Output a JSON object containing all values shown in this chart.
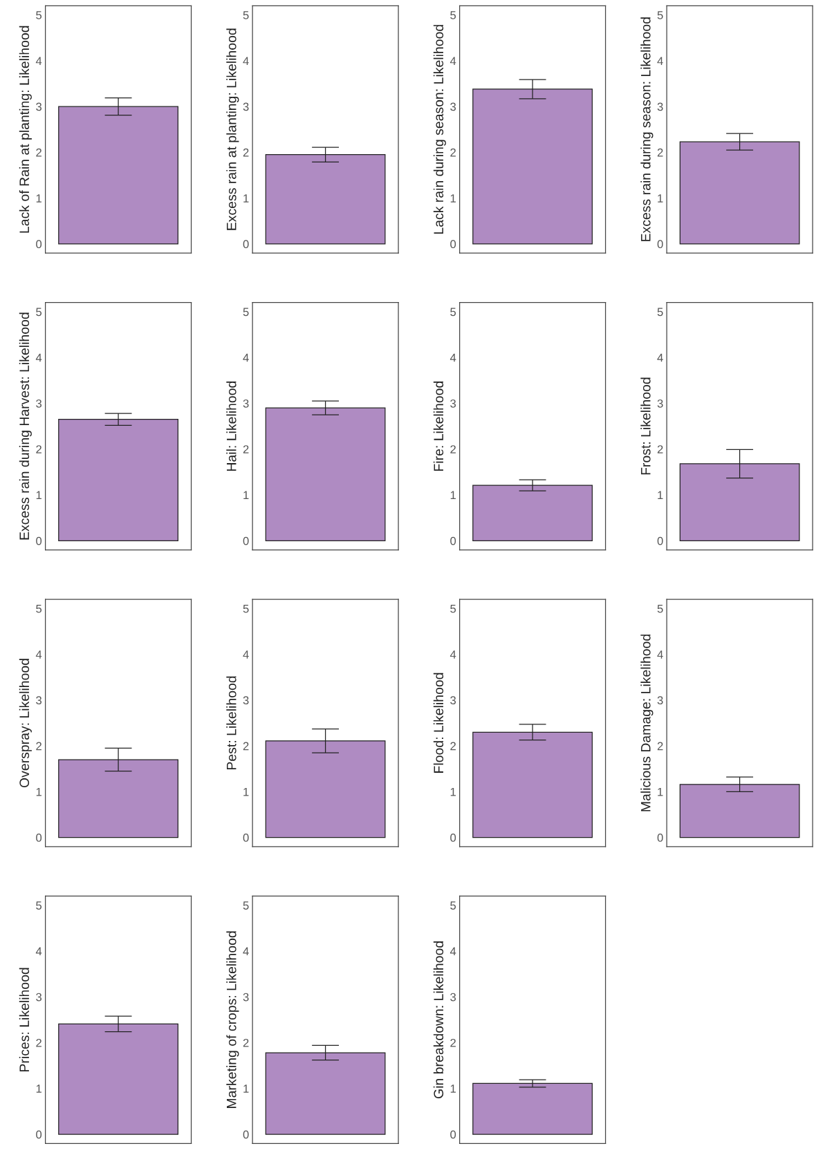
{
  "chart_data": [
    {
      "type": "bar",
      "ylabel": "Lack of Rain at planting: Likelihood",
      "categories": [
        null
      ],
      "values": [
        3.0
      ],
      "errors": [
        0.19
      ],
      "color": "#af8bc2",
      "ylim": [
        -0.2,
        5.2
      ],
      "yticks": [
        0,
        1,
        2,
        3,
        4,
        5
      ],
      "tick_labels": "y",
      "grid": false
    },
    {
      "type": "bar",
      "ylabel": "Excess rain at planting: Likelihood",
      "categories": [
        null
      ],
      "values": [
        1.95
      ],
      "errors": [
        0.16
      ],
      "color": "#af8bc2",
      "ylim": [
        -0.2,
        5.2
      ],
      "yticks": [
        0,
        1,
        2,
        3,
        4,
        5
      ],
      "tick_labels": "y",
      "grid": false
    },
    {
      "type": "bar",
      "ylabel": "Lack rain during season: Likelihood",
      "categories": [
        null
      ],
      "values": [
        3.38
      ],
      "errors": [
        0.21
      ],
      "color": "#af8bc2",
      "ylim": [
        -0.2,
        5.2
      ],
      "yticks": [
        0,
        1,
        2,
        3,
        4,
        5
      ],
      "tick_labels": "y",
      "grid": false
    },
    {
      "type": "bar",
      "ylabel": "Excess rain during season: Likelihood",
      "categories": [
        null
      ],
      "values": [
        2.23
      ],
      "errors": [
        0.18
      ],
      "color": "#af8bc2",
      "ylim": [
        -0.2,
        5.2
      ],
      "yticks": [
        0,
        1,
        2,
        3,
        4,
        5
      ],
      "tick_labels": "y",
      "grid": false
    },
    {
      "type": "bar",
      "ylabel": "Excess rain during Harvest: Likelihood",
      "categories": [
        null
      ],
      "values": [
        2.65
      ],
      "errors": [
        0.13
      ],
      "color": "#af8bc2",
      "ylim": [
        -0.2,
        5.2
      ],
      "yticks": [
        0,
        1,
        2,
        3,
        4,
        5
      ],
      "tick_labels": "y",
      "grid": false
    },
    {
      "type": "bar",
      "ylabel": "Hail: Likelihood",
      "categories": [
        null
      ],
      "values": [
        2.9
      ],
      "errors": [
        0.15
      ],
      "color": "#af8bc2",
      "ylim": [
        -0.2,
        5.2
      ],
      "yticks": [
        0,
        1,
        2,
        3,
        4,
        5
      ],
      "tick_labels": "y",
      "grid": false
    },
    {
      "type": "bar",
      "ylabel": "Fire: Likelihood",
      "categories": [
        null
      ],
      "values": [
        1.21
      ],
      "errors": [
        0.12
      ],
      "color": "#af8bc2",
      "ylim": [
        -0.2,
        5.2
      ],
      "yticks": [
        0,
        1,
        2,
        3,
        4,
        5
      ],
      "tick_labels": "y",
      "grid": false
    },
    {
      "type": "bar",
      "ylabel": "Frost: Likelihood",
      "categories": [
        null
      ],
      "values": [
        1.68
      ],
      "errors": [
        0.31
      ],
      "color": "#af8bc2",
      "ylim": [
        -0.2,
        5.2
      ],
      "yticks": [
        0,
        1,
        2,
        3,
        4,
        5
      ],
      "tick_labels": "y",
      "grid": false
    },
    {
      "type": "bar",
      "ylabel": "Overspray: Likelihood",
      "categories": [
        null
      ],
      "values": [
        1.7
      ],
      "errors": [
        0.25
      ],
      "color": "#af8bc2",
      "ylim": [
        -0.2,
        5.2
      ],
      "yticks": [
        0,
        1,
        2,
        3,
        4,
        5
      ],
      "tick_labels": "y",
      "grid": false
    },
    {
      "type": "bar",
      "ylabel": "Pest: Likelihood",
      "categories": [
        null
      ],
      "values": [
        2.11
      ],
      "errors": [
        0.26
      ],
      "color": "#af8bc2",
      "ylim": [
        -0.2,
        5.2
      ],
      "yticks": [
        0,
        1,
        2,
        3,
        4,
        5
      ],
      "tick_labels": "y",
      "grid": false
    },
    {
      "type": "bar",
      "ylabel": "Flood: Likelihood",
      "categories": [
        null
      ],
      "values": [
        2.3
      ],
      "errors": [
        0.17
      ],
      "color": "#af8bc2",
      "ylim": [
        -0.2,
        5.2
      ],
      "yticks": [
        0,
        1,
        2,
        3,
        4,
        5
      ],
      "tick_labels": "y",
      "grid": false
    },
    {
      "type": "bar",
      "ylabel": "Malicious Damage: Likelihood",
      "categories": [
        null
      ],
      "values": [
        1.16
      ],
      "errors": [
        0.16
      ],
      "color": "#af8bc2",
      "ylim": [
        -0.2,
        5.2
      ],
      "yticks": [
        0,
        1,
        2,
        3,
        4,
        5
      ],
      "tick_labels": "y",
      "grid": false
    },
    {
      "type": "bar",
      "ylabel": "Prices: Likelihood",
      "categories": [
        null
      ],
      "values": [
        2.41
      ],
      "errors": [
        0.17
      ],
      "color": "#af8bc2",
      "ylim": [
        -0.2,
        5.2
      ],
      "yticks": [
        0,
        1,
        2,
        3,
        4,
        5
      ],
      "tick_labels": "y",
      "grid": false
    },
    {
      "type": "bar",
      "ylabel": "Marketing of crops: Likelihood",
      "categories": [
        null
      ],
      "values": [
        1.78
      ],
      "errors": [
        0.16
      ],
      "color": "#af8bc2",
      "ylim": [
        -0.2,
        5.2
      ],
      "yticks": [
        0,
        1,
        2,
        3,
        4,
        5
      ],
      "tick_labels": "y",
      "grid": false
    },
    {
      "type": "bar",
      "ylabel": "Gin breakdown: Likelihood",
      "categories": [
        null
      ],
      "values": [
        1.11
      ],
      "errors": [
        0.08
      ],
      "color": "#af8bc2",
      "ylim": [
        -0.2,
        5.2
      ],
      "yticks": [
        0,
        1,
        2,
        3,
        4,
        5
      ],
      "tick_labels": "y",
      "grid": false
    }
  ]
}
